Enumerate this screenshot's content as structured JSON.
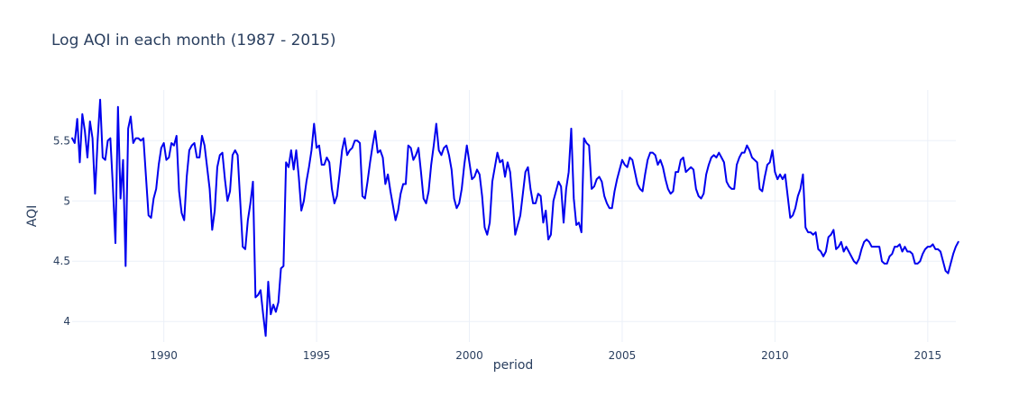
{
  "chart_data": {
    "type": "line",
    "title": "Log AQI in each month (1987 - 2015)",
    "xlabel": "period",
    "ylabel": "AQI",
    "xlim": [
      1987.0,
      2015.92
    ],
    "ylim": [
      3.83,
      5.92
    ],
    "x_ticks": [
      1990,
      1995,
      2000,
      2005,
      2010,
      2015
    ],
    "y_ticks": [
      4,
      4.5,
      5,
      5.5
    ],
    "y_tick_labels": [
      "4",
      "4.5",
      "5",
      "5.5"
    ],
    "grid": true,
    "line_color": "#0000ee",
    "series": [
      {
        "x_start": "1987-01",
        "x_step": "1 month",
        "values": [
          5.52,
          5.48,
          5.68,
          5.32,
          5.72,
          5.58,
          5.36,
          5.66,
          5.52,
          5.06,
          5.5,
          5.84,
          5.36,
          5.34,
          5.5,
          5.52,
          5.12,
          4.65,
          5.78,
          5.02,
          5.34,
          4.46,
          5.6,
          5.7,
          5.48,
          5.52,
          5.52,
          5.5,
          5.52,
          5.2,
          4.88,
          4.86,
          5.02,
          5.1,
          5.3,
          5.44,
          5.48,
          5.34,
          5.36,
          5.48,
          5.46,
          5.54,
          5.08,
          4.9,
          4.84,
          5.2,
          5.42,
          5.46,
          5.48,
          5.36,
          5.36,
          5.54,
          5.46,
          5.28,
          5.1,
          4.76,
          4.92,
          5.28,
          5.38,
          5.4,
          5.18,
          5.0,
          5.08,
          5.38,
          5.42,
          5.38,
          5.0,
          4.62,
          4.6,
          4.84,
          4.98,
          5.16,
          4.2,
          4.22,
          4.26,
          4.06,
          3.88,
          4.33,
          4.06,
          4.14,
          4.08,
          4.16,
          4.44,
          4.46,
          5.32,
          5.28,
          5.42,
          5.26,
          5.42,
          5.2,
          4.92,
          5.0,
          5.16,
          5.28,
          5.42,
          5.64,
          5.44,
          5.46,
          5.3,
          5.3,
          5.36,
          5.32,
          5.1,
          4.98,
          5.04,
          5.22,
          5.42,
          5.52,
          5.38,
          5.42,
          5.44,
          5.5,
          5.5,
          5.48,
          5.04,
          5.02,
          5.16,
          5.32,
          5.46,
          5.58,
          5.4,
          5.42,
          5.36,
          5.14,
          5.22,
          5.08,
          4.96,
          4.84,
          4.92,
          5.06,
          5.14,
          5.14,
          5.46,
          5.44,
          5.34,
          5.38,
          5.44,
          5.24,
          5.02,
          4.98,
          5.08,
          5.3,
          5.46,
          5.64,
          5.42,
          5.38,
          5.44,
          5.46,
          5.38,
          5.26,
          5.02,
          4.94,
          4.98,
          5.1,
          5.3,
          5.46,
          5.32,
          5.18,
          5.2,
          5.26,
          5.22,
          5.04,
          4.78,
          4.72,
          4.82,
          5.16,
          5.28,
          5.4,
          5.32,
          5.34,
          5.2,
          5.32,
          5.24,
          5.0,
          4.72,
          4.8,
          4.88,
          5.06,
          5.24,
          5.28,
          5.1,
          4.98,
          4.98,
          5.06,
          5.04,
          4.82,
          4.92,
          4.68,
          4.72,
          5.0,
          5.08,
          5.16,
          5.12,
          4.82,
          5.1,
          5.24,
          5.6,
          5.02,
          4.8,
          4.82,
          4.74,
          5.52,
          5.48,
          5.46,
          5.1,
          5.12,
          5.18,
          5.2,
          5.16,
          5.04,
          4.98,
          4.94,
          4.94,
          5.08,
          5.18,
          5.26,
          5.34,
          5.3,
          5.28,
          5.36,
          5.34,
          5.24,
          5.14,
          5.1,
          5.08,
          5.22,
          5.34,
          5.4,
          5.4,
          5.38,
          5.3,
          5.34,
          5.28,
          5.18,
          5.1,
          5.06,
          5.08,
          5.24,
          5.24,
          5.34,
          5.36,
          5.24,
          5.26,
          5.28,
          5.26,
          5.1,
          5.04,
          5.02,
          5.06,
          5.22,
          5.3,
          5.36,
          5.38,
          5.36,
          5.4,
          5.36,
          5.32,
          5.16,
          5.12,
          5.1,
          5.1,
          5.3,
          5.36,
          5.4,
          5.4,
          5.46,
          5.42,
          5.36,
          5.34,
          5.32,
          5.1,
          5.08,
          5.2,
          5.3,
          5.32,
          5.42,
          5.24,
          5.18,
          5.22,
          5.18,
          5.22,
          5.04,
          4.86,
          4.88,
          4.94,
          5.04,
          5.1,
          5.22,
          4.78,
          4.74,
          4.74,
          4.72,
          4.74,
          4.6,
          4.58,
          4.54,
          4.58,
          4.7,
          4.72,
          4.76,
          4.6,
          4.62,
          4.66,
          4.58,
          4.62,
          4.58,
          4.54,
          4.5,
          4.48,
          4.52,
          4.6,
          4.66,
          4.68,
          4.66,
          4.62,
          4.62,
          4.62,
          4.62,
          4.5,
          4.48,
          4.48,
          4.54,
          4.56,
          4.62,
          4.62,
          4.64,
          4.58,
          4.62,
          4.58,
          4.58,
          4.56,
          4.48,
          4.48,
          4.5,
          4.56,
          4.6,
          4.62,
          4.62,
          4.64,
          4.6,
          4.6,
          4.58,
          4.5,
          4.42,
          4.4,
          4.48,
          4.56,
          4.62,
          4.66
        ]
      }
    ]
  }
}
